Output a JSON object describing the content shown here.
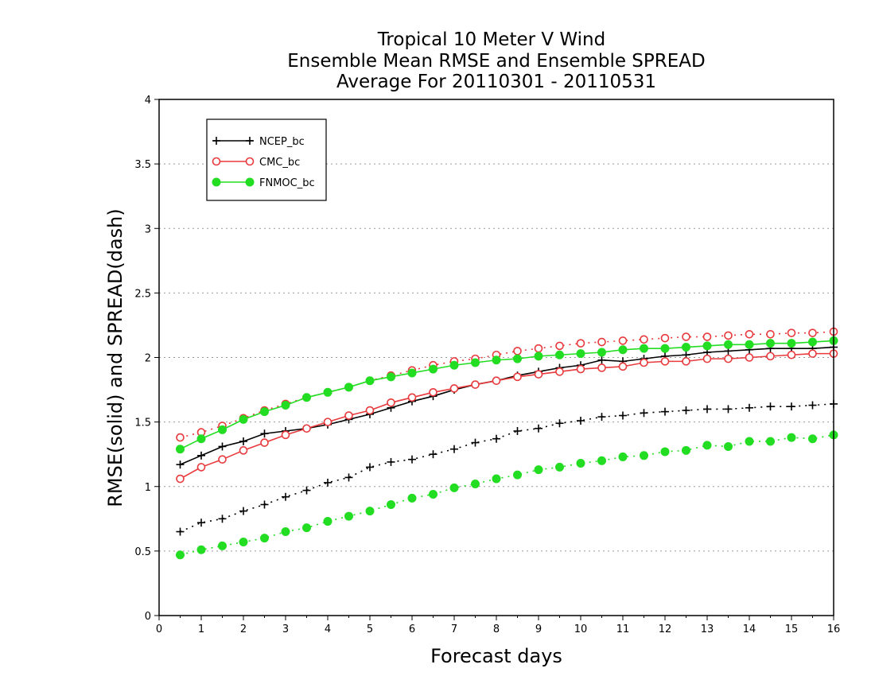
{
  "chart_data": {
    "type": "line",
    "title": [
      "Tropical 10 Meter V Wind",
      "Ensemble Mean RMSE and Ensemble SPREAD",
      "Average For 20110301 - 20110531"
    ],
    "xlabel": "Forecast days",
    "ylabel": "RMSE(solid) and SPREAD(dash)",
    "xlim": [
      0,
      16
    ],
    "ylim": [
      0,
      4
    ],
    "xticks": [
      "0",
      "1",
      "2",
      "3",
      "4",
      "5",
      "6",
      "7",
      "8",
      "9",
      "10",
      "11",
      "12",
      "13",
      "14",
      "15",
      "16"
    ],
    "yticks": [
      "0",
      "0.5",
      "1",
      "1.5",
      "2",
      "2.5",
      "3",
      "3.5",
      "4"
    ],
    "grid": "horizontal dotted",
    "legend_position": "top-left",
    "x": [
      0.5,
      1,
      1.5,
      2,
      2.5,
      3,
      3.5,
      4,
      4.5,
      5,
      5.5,
      6,
      6.5,
      7,
      7.5,
      8,
      8.5,
      9,
      9.5,
      10,
      10.5,
      11,
      11.5,
      12,
      12.5,
      13,
      13.5,
      14,
      14.5,
      15,
      15.5,
      16
    ],
    "series": [
      {
        "name": "NCEP_bc",
        "color": "#000000",
        "marker": "plus",
        "rmse": [
          1.17,
          1.24,
          1.31,
          1.35,
          1.41,
          1.43,
          1.45,
          1.48,
          1.52,
          1.56,
          1.61,
          1.66,
          1.7,
          1.75,
          1.79,
          1.82,
          1.86,
          1.89,
          1.92,
          1.94,
          1.98,
          1.97,
          1.99,
          2.01,
          2.02,
          2.04,
          2.05,
          2.06,
          2.07,
          2.07,
          2.07,
          2.08
        ],
        "spread": [
          0.65,
          0.72,
          0.75,
          0.81,
          0.86,
          0.92,
          0.97,
          1.03,
          1.07,
          1.15,
          1.19,
          1.21,
          1.25,
          1.29,
          1.34,
          1.37,
          1.43,
          1.45,
          1.49,
          1.51,
          1.54,
          1.55,
          1.57,
          1.58,
          1.59,
          1.6,
          1.6,
          1.61,
          1.62,
          1.62,
          1.63,
          1.64
        ]
      },
      {
        "name": "CMC_bc",
        "color": "#e8393c",
        "marker": "open-circle",
        "rmse": [
          1.06,
          1.15,
          1.21,
          1.28,
          1.34,
          1.4,
          1.45,
          1.5,
          1.55,
          1.59,
          1.65,
          1.69,
          1.73,
          1.76,
          1.79,
          1.82,
          1.85,
          1.87,
          1.89,
          1.91,
          1.92,
          1.93,
          1.96,
          1.97,
          1.97,
          1.99,
          1.99,
          2.0,
          2.01,
          2.02,
          2.03,
          2.03
        ],
        "spread": [
          1.38,
          1.42,
          1.47,
          1.53,
          1.59,
          1.64,
          1.69,
          1.73,
          1.77,
          1.82,
          1.86,
          1.9,
          1.94,
          1.97,
          1.99,
          2.02,
          2.05,
          2.07,
          2.09,
          2.11,
          2.12,
          2.13,
          2.14,
          2.15,
          2.16,
          2.16,
          2.17,
          2.18,
          2.18,
          2.19,
          2.19,
          2.2
        ]
      },
      {
        "name": "FNMOC_bc",
        "color": "#22dd22",
        "marker": "filled-circle",
        "rmse": [
          1.29,
          1.37,
          1.44,
          1.52,
          1.58,
          1.63,
          1.69,
          1.73,
          1.77,
          1.82,
          1.85,
          1.88,
          1.91,
          1.94,
          1.96,
          1.98,
          1.99,
          2.01,
          2.02,
          2.03,
          2.04,
          2.06,
          2.07,
          2.07,
          2.08,
          2.09,
          2.1,
          2.1,
          2.11,
          2.11,
          2.12,
          2.13
        ],
        "spread": [
          0.47,
          0.51,
          0.54,
          0.57,
          0.6,
          0.65,
          0.68,
          0.73,
          0.77,
          0.81,
          0.86,
          0.91,
          0.94,
          0.99,
          1.02,
          1.06,
          1.09,
          1.13,
          1.15,
          1.18,
          1.2,
          1.23,
          1.24,
          1.27,
          1.28,
          1.32,
          1.31,
          1.35,
          1.35,
          1.38,
          1.37,
          1.4
        ]
      }
    ]
  }
}
